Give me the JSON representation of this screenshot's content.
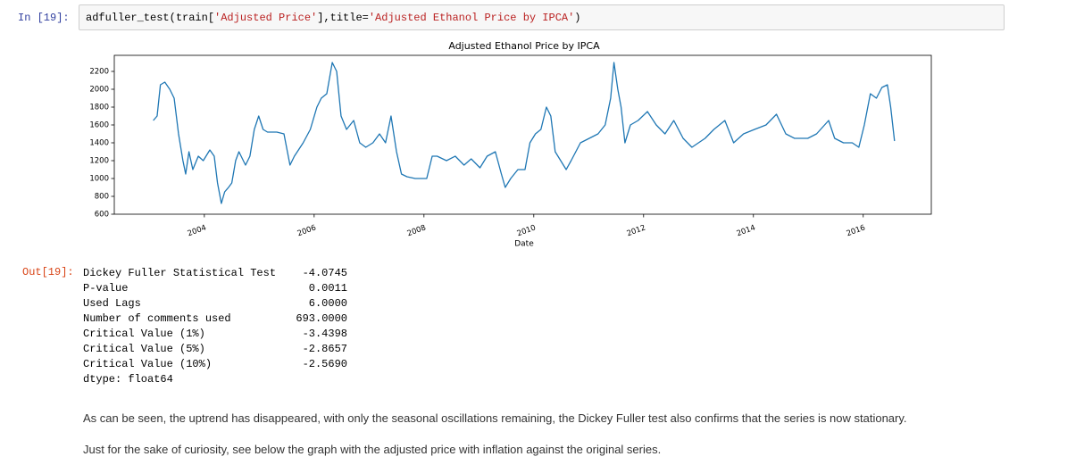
{
  "input": {
    "prompt": "In [19]:",
    "code": [
      "adfuller_test(train[",
      "'Adjusted Price'",
      "],title=",
      "'Adjusted Ethanol Price by IPCA'",
      ")"
    ]
  },
  "chart_data": {
    "type": "line",
    "title": "Adjusted Ethanol Price by IPCA",
    "xlabel": "Date",
    "color": "#1f77b4",
    "x": [
      2003.07,
      2003.14,
      2003.2,
      2003.28,
      2003.37,
      2003.45,
      2003.53,
      2003.61,
      2003.66,
      2003.72,
      2003.79,
      2003.89,
      2003.98,
      2004.1,
      2004.18,
      2004.24,
      2004.31,
      2004.37,
      2004.44,
      2004.5,
      2004.57,
      2004.63,
      2004.75,
      2004.83,
      2004.91,
      2004.99,
      2005.07,
      2005.15,
      2005.32,
      2005.45,
      2005.56,
      2005.64,
      2005.8,
      2005.93,
      2006.05,
      2006.13,
      2006.23,
      2006.33,
      2006.41,
      2006.49,
      2006.59,
      2006.72,
      2006.83,
      2006.94,
      2007.07,
      2007.19,
      2007.3,
      2007.4,
      2007.5,
      2007.59,
      2007.69,
      2007.84,
      2008.05,
      2008.15,
      2008.24,
      2008.41,
      2008.57,
      2008.73,
      2008.86,
      2009.02,
      2009.15,
      2009.3,
      2009.41,
      2009.48,
      2009.58,
      2009.71,
      2009.84,
      2009.93,
      2010.03,
      2010.13,
      2010.23,
      2010.31,
      2010.39,
      2010.49,
      2010.59,
      2010.68,
      2010.85,
      2011.01,
      2011.17,
      2011.3,
      2011.4,
      2011.46,
      2011.53,
      2011.59,
      2011.66,
      2011.76,
      2011.9,
      2012.07,
      2012.23,
      2012.39,
      2012.55,
      2012.72,
      2012.88,
      2013.12,
      2013.28,
      2013.48,
      2013.64,
      2013.82,
      2014.02,
      2014.23,
      2014.42,
      2014.59,
      2014.75,
      2014.99,
      2015.15,
      2015.37,
      2015.48,
      2015.64,
      2015.8,
      2015.92,
      2016.02,
      2016.13,
      2016.24,
      2016.34,
      2016.44,
      2016.5,
      2016.57
    ],
    "values": [
      1650,
      1700,
      2050,
      2080,
      2000,
      1900,
      1500,
      1200,
      1050,
      1300,
      1100,
      1250,
      1200,
      1320,
      1250,
      950,
      720,
      850,
      900,
      950,
      1200,
      1300,
      1150,
      1250,
      1550,
      1700,
      1550,
      1520,
      1520,
      1500,
      1150,
      1250,
      1400,
      1550,
      1800,
      1900,
      1950,
      2300,
      2200,
      1700,
      1550,
      1650,
      1400,
      1350,
      1400,
      1500,
      1400,
      1700,
      1300,
      1050,
      1020,
      1000,
      1000,
      1250,
      1250,
      1200,
      1250,
      1150,
      1220,
      1120,
      1250,
      1300,
      1050,
      900,
      1000,
      1100,
      1100,
      1400,
      1500,
      1550,
      1800,
      1700,
      1300,
      1200,
      1100,
      1200,
      1400,
      1450,
      1500,
      1600,
      1900,
      2300,
      2000,
      1800,
      1400,
      1600,
      1650,
      1750,
      1600,
      1500,
      1650,
      1450,
      1350,
      1450,
      1550,
      1650,
      1400,
      1500,
      1550,
      1600,
      1720,
      1500,
      1450,
      1450,
      1500,
      1650,
      1450,
      1400,
      1400,
      1350,
      1600,
      1950,
      1900,
      2020,
      2050,
      1800,
      1420
    ],
    "xlim": [
      2002.36,
      2017.24
    ],
    "xticks": [
      2004,
      2006,
      2008,
      2010,
      2012,
      2014,
      2016
    ],
    "ylim": [
      600,
      2380
    ],
    "yticks": [
      600,
      800,
      1000,
      1200,
      1400,
      1600,
      1800,
      2000,
      2200
    ],
    "grid": false
  },
  "output": {
    "prompt": "Out[19]:",
    "rows": [
      [
        "Dickey Fuller Statistical Test",
        "-4.0745"
      ],
      [
        "P-value",
        "0.0011"
      ],
      [
        "Used Lags",
        "6.0000"
      ],
      [
        "Number of comments used",
        "693.0000"
      ],
      [
        "Critical Value (1%)",
        "-3.4398"
      ],
      [
        "Critical Value (5%)",
        "-2.8657"
      ],
      [
        "Critical Value (10%)",
        "-2.5690"
      ]
    ],
    "dtype": "dtype: float64"
  },
  "markdown": [
    "As can be seen, the uptrend has disappeared, with only the seasonal oscillations remaining, the Dickey Fuller test also confirms that the series is now stationary.",
    "Just for the sake of curiosity, see below the graph with the adjusted price with inflation against the original series."
  ]
}
